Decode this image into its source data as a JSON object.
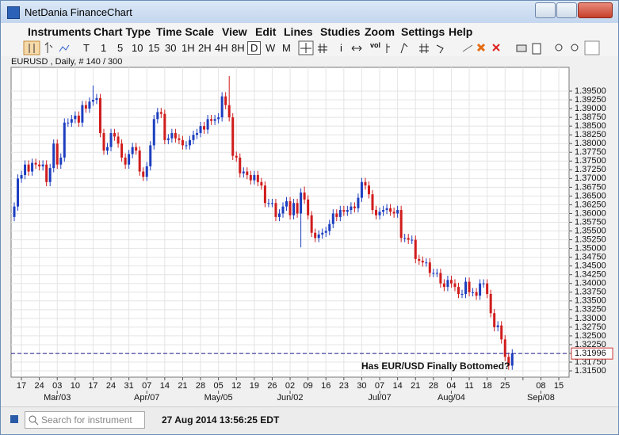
{
  "window": {
    "title": "NetDania FinanceChart"
  },
  "menu": [
    "Instruments",
    "Chart Type",
    "Time Scale",
    "View",
    "Edit",
    "Lines",
    "Studies",
    "Zoom",
    "Settings",
    "Help"
  ],
  "toolbar": [
    "T",
    "1",
    "5",
    "10",
    "15",
    "30",
    "1H",
    "2H",
    "4H",
    "8H",
    "D",
    "W",
    "M",
    "i",
    "vol"
  ],
  "status": {
    "search_placeholder": "Search for instrument",
    "timestamp": "27 Aug 2014 13:56:25 EDT"
  },
  "chart_data": {
    "type": "candlestick",
    "title": "EURUSD , Daily, # 140 / 300",
    "annotation": "Has EUR/USD Finally Bottomed?",
    "up_color": "#1c3ec0",
    "down_color": "#d01c1c",
    "grid": true,
    "last": {
      "value": 1.31996,
      "label": "1.31996",
      "color": "#1a1a8c"
    },
    "xticks": [
      "17",
      "24",
      "03",
      "10",
      "17",
      "24",
      "31",
      "07",
      "14",
      "21",
      "28",
      "05",
      "12",
      "19",
      "26",
      "02",
      "09",
      "16",
      "23",
      "30",
      "07",
      "14",
      "21",
      "28",
      "04",
      "11",
      "18",
      "25",
      null,
      "08",
      "15"
    ],
    "month_labels": [
      null,
      null,
      "Mar/03",
      null,
      null,
      null,
      null,
      "Apr/07",
      null,
      null,
      null,
      "May/05",
      null,
      null,
      null,
      "Jun/02",
      null,
      null,
      null,
      null,
      "Jul/07",
      null,
      null,
      null,
      "Aug/04",
      null,
      null,
      null,
      null,
      "Sep/08",
      null
    ],
    "ylim": [
      1.3132,
      1.4018
    ],
    "yticks": [
      {
        "value": 1.315,
        "label": "1.31500"
      },
      {
        "value": 1.3175,
        "label": "1.31750"
      },
      {
        "value": 1.32,
        "label": "1.32000"
      },
      {
        "value": 1.3225,
        "label": "1.32250"
      },
      {
        "value": 1.325,
        "label": "1.32500"
      },
      {
        "value": 1.3275,
        "label": "1.32750"
      },
      {
        "value": 1.33,
        "label": "1.33000"
      },
      {
        "value": 1.3325,
        "label": "1.33250"
      },
      {
        "value": 1.335,
        "label": "1.33500"
      },
      {
        "value": 1.3375,
        "label": "1.33750"
      },
      {
        "value": 1.34,
        "label": "1.34000"
      },
      {
        "value": 1.3425,
        "label": "1.34250"
      },
      {
        "value": 1.345,
        "label": "1.34500"
      },
      {
        "value": 1.3475,
        "label": "1.34750"
      },
      {
        "value": 1.35,
        "label": "1.35000"
      },
      {
        "value": 1.3525,
        "label": "1.35250"
      },
      {
        "value": 1.355,
        "label": "1.35500"
      },
      {
        "value": 1.3575,
        "label": "1.35750"
      },
      {
        "value": 1.36,
        "label": "1.36000"
      },
      {
        "value": 1.3625,
        "label": "1.36250"
      },
      {
        "value": 1.365,
        "label": "1.36500"
      },
      {
        "value": 1.3675,
        "label": "1.36750"
      },
      {
        "value": 1.37,
        "label": "1.37000"
      },
      {
        "value": 1.3725,
        "label": "1.37250"
      },
      {
        "value": 1.375,
        "label": "1.37500"
      },
      {
        "value": 1.3775,
        "label": "1.37750"
      },
      {
        "value": 1.38,
        "label": "1.38000"
      },
      {
        "value": 1.3825,
        "label": "1.38250"
      },
      {
        "value": 1.385,
        "label": "1.38500"
      },
      {
        "value": 1.3875,
        "label": "1.38750"
      },
      {
        "value": 1.39,
        "label": "1.39000"
      },
      {
        "value": 1.3925,
        "label": "1.39250"
      },
      {
        "value": 1.395,
        "label": "1.39500"
      }
    ],
    "ohlc": [
      [
        1.359,
        1.3632,
        1.3578,
        1.362
      ],
      [
        1.362,
        1.3712,
        1.3608,
        1.37
      ],
      [
        1.37,
        1.3722,
        1.3688,
        1.371
      ],
      [
        1.371,
        1.3752,
        1.3698,
        1.374
      ],
      [
        1.374,
        1.3752,
        1.3708,
        1.372
      ],
      [
        1.372,
        1.3757,
        1.3708,
        1.3745
      ],
      [
        1.3745,
        1.3757,
        1.3728,
        1.374
      ],
      [
        1.374,
        1.3752,
        1.3723,
        1.3735
      ],
      [
        1.3735,
        1.3752,
        1.3723,
        1.374
      ],
      [
        1.374,
        1.3752,
        1.3678,
        1.369
      ],
      [
        1.369,
        1.3742,
        1.3678,
        1.373
      ],
      [
        1.373,
        1.3812,
        1.3718,
        1.38
      ],
      [
        1.38,
        1.3812,
        1.3728,
        1.374
      ],
      [
        1.374,
        1.3772,
        1.3728,
        1.376
      ],
      [
        1.376,
        1.3872,
        1.3748,
        1.386
      ],
      [
        1.386,
        1.3872,
        1.3848,
        1.386
      ],
      [
        1.386,
        1.3882,
        1.3848,
        1.387
      ],
      [
        1.387,
        1.3892,
        1.3858,
        1.388
      ],
      [
        1.388,
        1.3892,
        1.3848,
        1.386
      ],
      [
        1.386,
        1.3922,
        1.3848,
        1.391
      ],
      [
        1.391,
        1.3922,
        1.3888,
        1.39
      ],
      [
        1.39,
        1.3932,
        1.3888,
        1.392
      ],
      [
        1.392,
        1.3966,
        1.3908,
        1.3925
      ],
      [
        1.3925,
        1.3942,
        1.3913,
        1.393
      ],
      [
        1.393,
        1.3942,
        1.3818,
        1.383
      ],
      [
        1.383,
        1.3842,
        1.3768,
        1.378
      ],
      [
        1.378,
        1.3802,
        1.3768,
        1.379
      ],
      [
        1.379,
        1.3842,
        1.3778,
        1.383
      ],
      [
        1.383,
        1.3842,
        1.3808,
        1.382
      ],
      [
        1.382,
        1.3832,
        1.3788,
        1.38
      ],
      [
        1.38,
        1.3812,
        1.3748,
        1.376
      ],
      [
        1.376,
        1.3772,
        1.3728,
        1.374
      ],
      [
        1.374,
        1.3782,
        1.3728,
        1.377
      ],
      [
        1.377,
        1.3802,
        1.3758,
        1.379
      ],
      [
        1.379,
        1.3802,
        1.3768,
        1.378
      ],
      [
        1.378,
        1.3792,
        1.3708,
        1.372
      ],
      [
        1.372,
        1.3732,
        1.3693,
        1.3705
      ],
      [
        1.3705,
        1.3747,
        1.3693,
        1.3735
      ],
      [
        1.3735,
        1.3807,
        1.3723,
        1.3795
      ],
      [
        1.3795,
        1.3882,
        1.3783,
        1.387
      ],
      [
        1.387,
        1.3902,
        1.3858,
        1.389
      ],
      [
        1.389,
        1.3902,
        1.3873,
        1.3885
      ],
      [
        1.3885,
        1.3897,
        1.3798,
        1.381
      ],
      [
        1.381,
        1.3827,
        1.3798,
        1.3815
      ],
      [
        1.3815,
        1.3842,
        1.3803,
        1.383
      ],
      [
        1.383,
        1.3842,
        1.3803,
        1.3815
      ],
      [
        1.3815,
        1.3827,
        1.3798,
        1.381
      ],
      [
        1.381,
        1.3822,
        1.3783,
        1.3795
      ],
      [
        1.3795,
        1.3807,
        1.3783,
        1.3795
      ],
      [
        1.3795,
        1.3822,
        1.3783,
        1.381
      ],
      [
        1.381,
        1.3837,
        1.3798,
        1.3825
      ],
      [
        1.3825,
        1.3842,
        1.3813,
        1.383
      ],
      [
        1.383,
        1.3862,
        1.3818,
        1.385
      ],
      [
        1.385,
        1.3862,
        1.3828,
        1.384
      ],
      [
        1.384,
        1.3882,
        1.3828,
        1.387
      ],
      [
        1.387,
        1.3882,
        1.3853,
        1.3865
      ],
      [
        1.3865,
        1.3882,
        1.3853,
        1.387
      ],
      [
        1.387,
        1.3887,
        1.3858,
        1.3875
      ],
      [
        1.3875,
        1.3947,
        1.3863,
        1.3935
      ],
      [
        1.3935,
        1.3947,
        1.3898,
        1.391
      ],
      [
        1.391,
        1.3993,
        1.3863,
        1.3875
      ],
      [
        1.3875,
        1.3887,
        1.3753,
        1.3765
      ],
      [
        1.3765,
        1.3777,
        1.3748,
        1.376
      ],
      [
        1.376,
        1.3772,
        1.3703,
        1.3715
      ],
      [
        1.3715,
        1.3732,
        1.3703,
        1.372
      ],
      [
        1.372,
        1.3732,
        1.3698,
        1.371
      ],
      [
        1.371,
        1.3722,
        1.3683,
        1.3695
      ],
      [
        1.3695,
        1.3722,
        1.3683,
        1.371
      ],
      [
        1.371,
        1.3722,
        1.3678,
        1.369
      ],
      [
        1.369,
        1.3702,
        1.3668,
        1.368
      ],
      [
        1.368,
        1.3692,
        1.3618,
        1.363
      ],
      [
        1.363,
        1.3642,
        1.3618,
        1.363
      ],
      [
        1.363,
        1.3642,
        1.3618,
        1.363
      ],
      [
        1.363,
        1.3642,
        1.3578,
        1.359
      ],
      [
        1.359,
        1.3612,
        1.3578,
        1.36
      ],
      [
        1.36,
        1.3632,
        1.3588,
        1.362
      ],
      [
        1.362,
        1.3647,
        1.3608,
        1.3635
      ],
      [
        1.3635,
        1.3647,
        1.3583,
        1.3595
      ],
      [
        1.3595,
        1.3642,
        1.3583,
        1.363
      ],
      [
        1.363,
        1.3642,
        1.3588,
        1.36
      ],
      [
        1.36,
        1.3672,
        1.3503,
        1.366
      ],
      [
        1.366,
        1.3677,
        1.3628,
        1.364
      ],
      [
        1.364,
        1.3652,
        1.3583,
        1.3595
      ],
      [
        1.3595,
        1.3607,
        1.3533,
        1.3545
      ],
      [
        1.3545,
        1.3557,
        1.3518,
        1.353
      ],
      [
        1.353,
        1.3552,
        1.3518,
        1.354
      ],
      [
        1.354,
        1.3557,
        1.3528,
        1.3545
      ],
      [
        1.3545,
        1.3562,
        1.3533,
        1.355
      ],
      [
        1.355,
        1.3582,
        1.3538,
        1.357
      ],
      [
        1.357,
        1.3612,
        1.3558,
        1.36
      ],
      [
        1.36,
        1.3612,
        1.3578,
        1.359
      ],
      [
        1.359,
        1.3622,
        1.3578,
        1.361
      ],
      [
        1.361,
        1.3622,
        1.3593,
        1.3605
      ],
      [
        1.3605,
        1.3622,
        1.3593,
        1.361
      ],
      [
        1.361,
        1.3632,
        1.3598,
        1.362
      ],
      [
        1.362,
        1.3632,
        1.3603,
        1.3615
      ],
      [
        1.3615,
        1.3657,
        1.3603,
        1.3645
      ],
      [
        1.3645,
        1.3702,
        1.3633,
        1.369
      ],
      [
        1.369,
        1.3702,
        1.3668,
        1.368
      ],
      [
        1.368,
        1.3692,
        1.3643,
        1.3655
      ],
      [
        1.3655,
        1.3667,
        1.3598,
        1.361
      ],
      [
        1.361,
        1.3622,
        1.3583,
        1.3595
      ],
      [
        1.3595,
        1.3617,
        1.3583,
        1.3605
      ],
      [
        1.3605,
        1.3622,
        1.3593,
        1.361
      ],
      [
        1.361,
        1.3627,
        1.3598,
        1.3615
      ],
      [
        1.3615,
        1.3627,
        1.3593,
        1.3605
      ],
      [
        1.3605,
        1.3617,
        1.3588,
        1.36
      ],
      [
        1.36,
        1.3622,
        1.3588,
        1.361
      ],
      [
        1.361,
        1.3622,
        1.3518,
        1.353
      ],
      [
        1.353,
        1.3542,
        1.3518,
        1.353
      ],
      [
        1.353,
        1.3542,
        1.3513,
        1.3525
      ],
      [
        1.3525,
        1.3537,
        1.3513,
        1.3525
      ],
      [
        1.3525,
        1.3537,
        1.3458,
        1.347
      ],
      [
        1.347,
        1.3482,
        1.3453,
        1.3465
      ],
      [
        1.3465,
        1.3477,
        1.3448,
        1.346
      ],
      [
        1.346,
        1.3472,
        1.3448,
        1.346
      ],
      [
        1.346,
        1.3472,
        1.3418,
        1.343
      ],
      [
        1.343,
        1.3442,
        1.3418,
        1.343
      ],
      [
        1.343,
        1.3442,
        1.3418,
        1.343
      ],
      [
        1.343,
        1.3442,
        1.3388,
        1.34
      ],
      [
        1.34,
        1.3412,
        1.3378,
        1.339
      ],
      [
        1.339,
        1.3422,
        1.3378,
        1.341
      ],
      [
        1.341,
        1.3422,
        1.3388,
        1.34
      ],
      [
        1.34,
        1.3412,
        1.3378,
        1.339
      ],
      [
        1.339,
        1.3402,
        1.3358,
        1.337
      ],
      [
        1.337,
        1.3382,
        1.3358,
        1.337
      ],
      [
        1.337,
        1.3417,
        1.3358,
        1.3405
      ],
      [
        1.3405,
        1.3417,
        1.3363,
        1.3375
      ],
      [
        1.3375,
        1.3387,
        1.3363,
        1.3375
      ],
      [
        1.3375,
        1.3387,
        1.3353,
        1.3365
      ],
      [
        1.3365,
        1.3412,
        1.3353,
        1.34
      ],
      [
        1.34,
        1.3412,
        1.3388,
        1.34
      ],
      [
        1.34,
        1.3412,
        1.3358,
        1.337
      ],
      [
        1.337,
        1.3382,
        1.3303,
        1.3315
      ],
      [
        1.3315,
        1.3327,
        1.3263,
        1.3275
      ],
      [
        1.3275,
        1.3292,
        1.3263,
        1.328
      ],
      [
        1.328,
        1.3292,
        1.3228,
        1.324
      ],
      [
        1.324,
        1.3252,
        1.3178,
        1.319
      ],
      [
        1.319,
        1.3202,
        1.3153,
        1.3165
      ],
      [
        1.3165,
        1.3212,
        1.3153,
        1.32
      ]
    ]
  }
}
